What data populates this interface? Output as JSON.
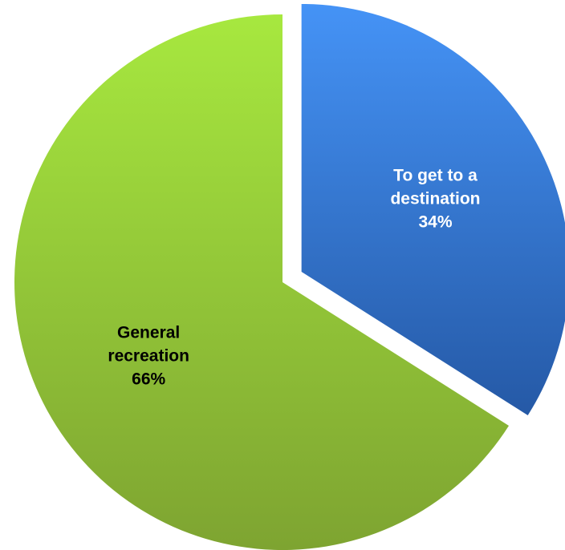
{
  "chart_data": {
    "type": "pie",
    "exploded": true,
    "slices": [
      {
        "label_lines": [
          "To get to a",
          "destination"
        ],
        "percent_text": "34%",
        "value": 34,
        "color_top": "#4593f6",
        "color_bottom": "#2559a6",
        "label_color": "#ffffff"
      },
      {
        "label_lines": [
          "General",
          "recreation"
        ],
        "percent_text": "66%",
        "value": 66,
        "color_top": "#a7e83f",
        "color_bottom": "#7ea431",
        "label_color": "#000000"
      }
    ]
  }
}
